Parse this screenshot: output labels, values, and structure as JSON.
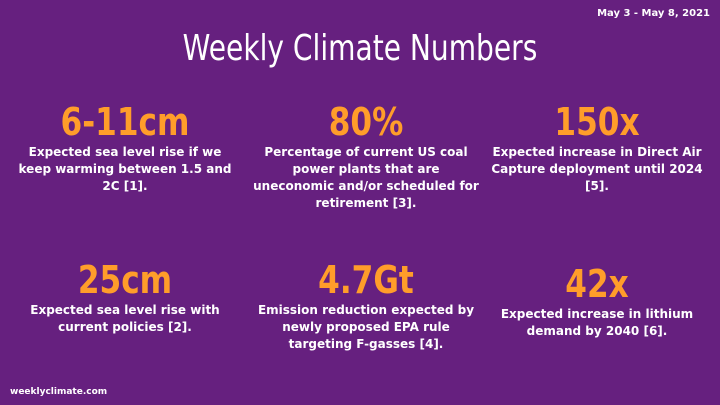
{
  "date_range": "May 3 - May 8, 2021",
  "title": "Weekly Climate Numbers",
  "footer": "weeklyclimate.com",
  "colors": {
    "background": "#66207f",
    "accent": "#ff9d2a",
    "text": "#ffffff"
  },
  "stats": [
    {
      "value": "6-11cm",
      "description": "Expected sea level rise if we keep warming between 1.5 and 2C [1]."
    },
    {
      "value": "80%",
      "description": "Percentage of current US coal power plants that are uneconomic and/or scheduled for retirement [3]."
    },
    {
      "value": "150x",
      "description": "Expected increase in Direct Air Capture deployment until 2024 [5]."
    },
    {
      "value": "25cm",
      "description": "Expected sea level rise with current policies [2]."
    },
    {
      "value": "4.7Gt",
      "description": "Emission reduction expected by newly proposed EPA rule targeting F-gasses [4]."
    },
    {
      "value": "42x",
      "description": "Expected increase in lithium demand by 2040 [6]."
    }
  ]
}
